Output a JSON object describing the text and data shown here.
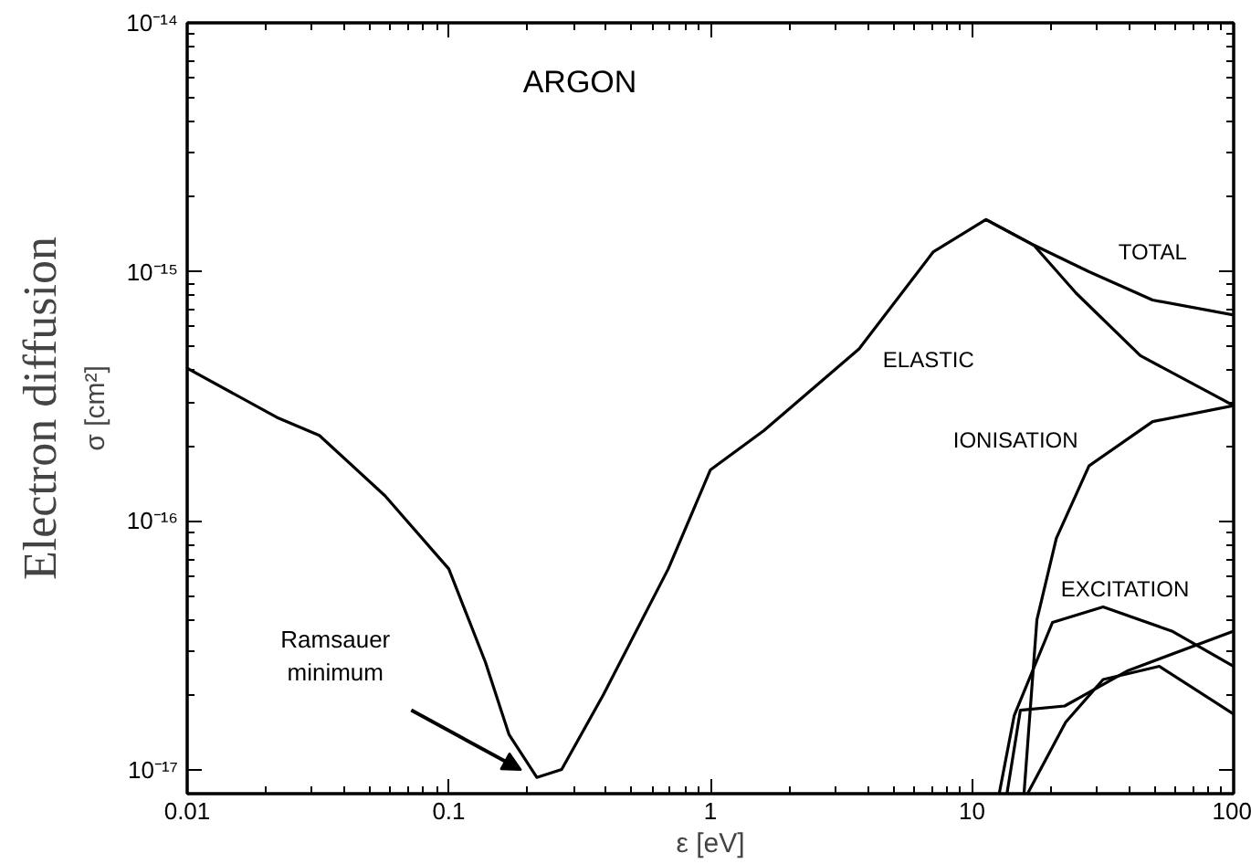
{
  "chart_data": {
    "type": "line",
    "title": "ARGON",
    "subtitle": "Electron diffusion",
    "xlabel": "ε [eV]",
    "ylabel": "σ [cm²]",
    "log": "xy",
    "xlim": [
      0.01,
      100
    ],
    "ylim": [
      8e-18,
      1e-14
    ],
    "xticks": [
      0.01,
      0.1,
      1,
      10,
      100
    ],
    "yticks": [
      {
        "value": 1e-17,
        "label": "10⁻¹⁷"
      },
      {
        "value": 1e-16,
        "label": "10⁻¹⁶"
      },
      {
        "value": 1e-15,
        "label": "10⁻¹⁵"
      },
      {
        "value": 1e-14,
        "label": "10⁻¹⁴"
      }
    ],
    "grid": false,
    "legend": false,
    "marker": "none",
    "line_style": "solid",
    "series": [
      {
        "name": "ELASTIC",
        "color": "#000000",
        "x": [
          0.01,
          0.022,
          0.032,
          0.057,
          0.1,
          0.138,
          0.17,
          0.217,
          0.27,
          0.39,
          0.69,
          1,
          1.6,
          3.7,
          7.1,
          11.3,
          17.2,
          25,
          44,
          100
        ],
        "values": [
          4.1e-16,
          2.6e-16,
          2.2e-16,
          1.26e-16,
          6.4e-17,
          2.7e-17,
          1.38e-17,
          9.3e-18,
          1e-17,
          2e-17,
          6.4e-17,
          1.6e-16,
          2.3e-16,
          4.9e-16,
          1.2e-15,
          1.62e-15,
          1.28e-15,
          8.2e-16,
          4.6e-16,
          2.9e-16
        ]
      },
      {
        "name": "TOTAL",
        "color": "#000000",
        "x": [
          11.3,
          17.2,
          28,
          49,
          100
        ],
        "values": [
          1.62e-15,
          1.28e-15,
          1e-15,
          7.7e-16,
          6.7e-16
        ]
      },
      {
        "name": "IONISATION",
        "color": "#000000",
        "x": [
          15.8,
          17.7,
          21,
          28,
          49,
          100
        ],
        "values": [
          8e-18,
          4e-17,
          8.5e-17,
          1.66e-16,
          2.5e-16,
          2.9e-16
        ]
      },
      {
        "color": "#000000",
        "x": [
          12.7,
          14.5,
          20.3,
          31.7,
          58,
          100
        ],
        "values": [
          8e-18,
          1.65e-17,
          3.9e-17,
          4.5e-17,
          3.6e-17,
          2.6e-17
        ]
      },
      {
        "color": "#000000",
        "x": [
          13.6,
          15.3,
          22.6,
          39.5,
          100
        ],
        "values": [
          8e-18,
          1.73e-17,
          1.8e-17,
          2.5e-17,
          3.6e-17
        ]
      },
      {
        "color": "#000000",
        "x": [
          16.3,
          22.8,
          31.7,
          52,
          100
        ],
        "values": [
          8e-18,
          1.55e-17,
          2.3e-17,
          2.6e-17,
          1.67e-17
        ]
      }
    ],
    "annotations": [
      "Ramsauer\nminimum",
      "EXCITATION"
    ]
  }
}
